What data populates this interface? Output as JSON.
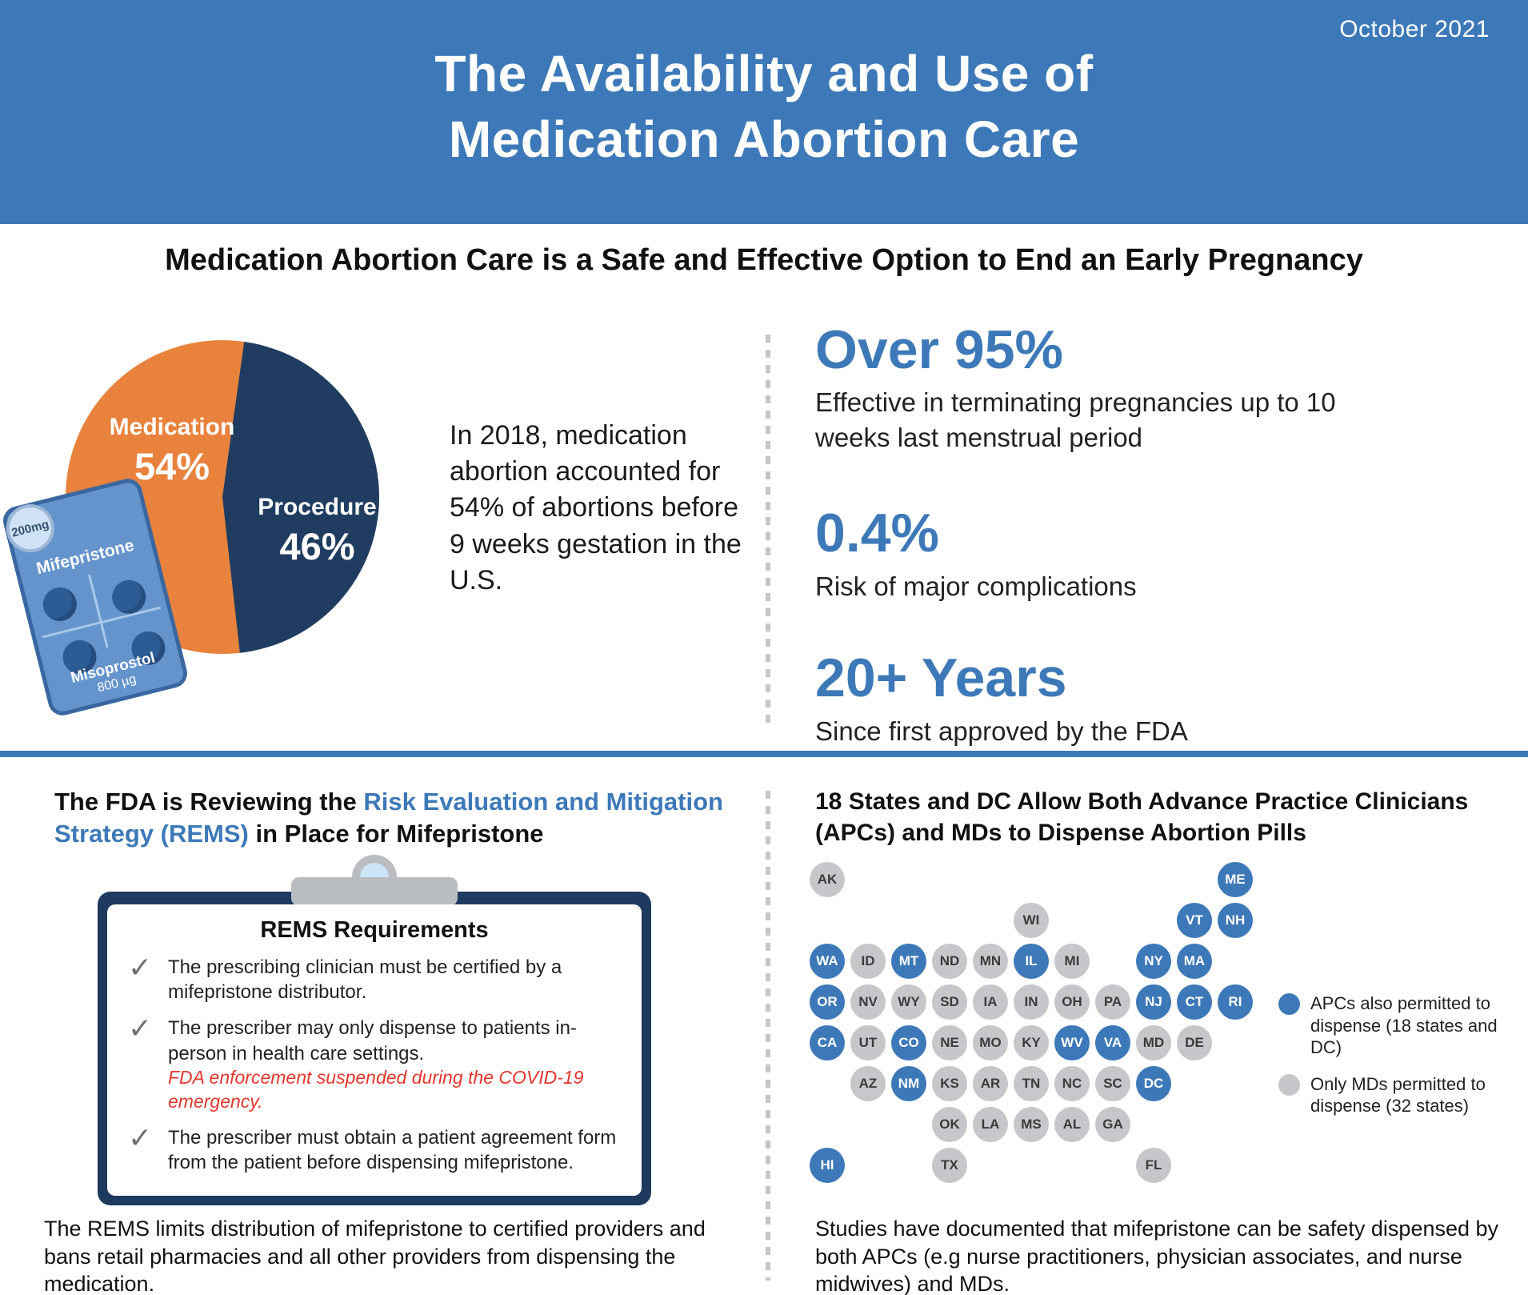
{
  "header": {
    "date": "October 2021",
    "title_line1": "The Availability and Use of",
    "title_line2": "Medication Abortion Care"
  },
  "section_safe": {
    "heading": "Medication Abortion Care is a Safe and Effective Option to End an Early Pregnancy",
    "caption": "In 2018, medication abortion accounted for 54% of abortions before 9 weeks gestation in the U.S.",
    "stats": [
      {
        "value": "Over 95%",
        "desc": "Effective in terminating pregnancies up to 10 weeks last menstrual period"
      },
      {
        "value": "0.4%",
        "desc": "Risk of major complications"
      },
      {
        "value": "20+ Years",
        "desc": "Since first approved by the FDA"
      }
    ]
  },
  "chart_data": {
    "type": "pie",
    "title": "Share of abortions before 9 weeks gestation in the U.S., 2018",
    "slices": [
      {
        "label": "Medication",
        "value": 54,
        "display": "54%",
        "color": "#E8823C"
      },
      {
        "label": "Procedure",
        "value": 46,
        "display": "46%",
        "color": "#203D61"
      }
    ],
    "legend_position": "on-slice"
  },
  "pill_pack": {
    "dose_badge": "200mg",
    "drug1": "Mifepristone",
    "drug2": "Misoprostol",
    "drug2_dose": "800 µg"
  },
  "rems": {
    "heading": {
      "part1": "The FDA is Reviewing the ",
      "part2_blue": "Risk Evaluation and Mitigation Strategy (REMS)",
      "part3": " in Place for Mifepristone"
    },
    "card_title": "REMS Requirements",
    "items": [
      {
        "text": "The prescribing clinician must be certified by a mifepristone distributor."
      },
      {
        "text": "The prescriber may only dispense to patients in-person in health care settings.",
        "note": "FDA enforcement suspended during the COVID-19 emergency."
      },
      {
        "text": "The prescriber must obtain a patient agreement form from the patient before dispensing mifepristone."
      }
    ],
    "footer": "The REMS limits distribution of mifepristone to certified providers and bans retail pharmacies and all other providers from dispensing the medication."
  },
  "map_section": {
    "heading": "18 States and DC Allow Both Advance Practice Clinicians (APCs) and MDs to Dispense Abortion Pills",
    "legend": [
      {
        "label": "APCs also permitted to dispense (18 states and DC)",
        "color": "#3d79b8"
      },
      {
        "label": "Only MDs permitted to dispense (32 states)",
        "color": "#c5c7ca"
      }
    ],
    "states": [
      {
        "abbr": "AK",
        "row": 0,
        "col": 0,
        "apc": false
      },
      {
        "abbr": "ME",
        "row": 0,
        "col": 10,
        "apc": true
      },
      {
        "abbr": "WI",
        "row": 1,
        "col": 5,
        "apc": false
      },
      {
        "abbr": "VT",
        "row": 1,
        "col": 9,
        "apc": true
      },
      {
        "abbr": "NH",
        "row": 1,
        "col": 10,
        "apc": true
      },
      {
        "abbr": "WA",
        "row": 2,
        "col": 0,
        "apc": true
      },
      {
        "abbr": "ID",
        "row": 2,
        "col": 1,
        "apc": false
      },
      {
        "abbr": "MT",
        "row": 2,
        "col": 2,
        "apc": true
      },
      {
        "abbr": "ND",
        "row": 2,
        "col": 3,
        "apc": false
      },
      {
        "abbr": "MN",
        "row": 2,
        "col": 4,
        "apc": false
      },
      {
        "abbr": "IL",
        "row": 2,
        "col": 5,
        "apc": true
      },
      {
        "abbr": "MI",
        "row": 2,
        "col": 6,
        "apc": false
      },
      {
        "abbr": "NY",
        "row": 2,
        "col": 8,
        "apc": true
      },
      {
        "abbr": "MA",
        "row": 2,
        "col": 9,
        "apc": true
      },
      {
        "abbr": "OR",
        "row": 3,
        "col": 0,
        "apc": true
      },
      {
        "abbr": "NV",
        "row": 3,
        "col": 1,
        "apc": false
      },
      {
        "abbr": "WY",
        "row": 3,
        "col": 2,
        "apc": false
      },
      {
        "abbr": "SD",
        "row": 3,
        "col": 3,
        "apc": false
      },
      {
        "abbr": "IA",
        "row": 3,
        "col": 4,
        "apc": false
      },
      {
        "abbr": "IN",
        "row": 3,
        "col": 5,
        "apc": false
      },
      {
        "abbr": "OH",
        "row": 3,
        "col": 6,
        "apc": false
      },
      {
        "abbr": "PA",
        "row": 3,
        "col": 7,
        "apc": false
      },
      {
        "abbr": "NJ",
        "row": 3,
        "col": 8,
        "apc": true
      },
      {
        "abbr": "CT",
        "row": 3,
        "col": 9,
        "apc": true
      },
      {
        "abbr": "RI",
        "row": 3,
        "col": 10,
        "apc": true
      },
      {
        "abbr": "CA",
        "row": 4,
        "col": 0,
        "apc": true
      },
      {
        "abbr": "UT",
        "row": 4,
        "col": 1,
        "apc": false
      },
      {
        "abbr": "CO",
        "row": 4,
        "col": 2,
        "apc": true
      },
      {
        "abbr": "NE",
        "row": 4,
        "col": 3,
        "apc": false
      },
      {
        "abbr": "MO",
        "row": 4,
        "col": 4,
        "apc": false
      },
      {
        "abbr": "KY",
        "row": 4,
        "col": 5,
        "apc": false
      },
      {
        "abbr": "WV",
        "row": 4,
        "col": 6,
        "apc": true
      },
      {
        "abbr": "VA",
        "row": 4,
        "col": 7,
        "apc": true
      },
      {
        "abbr": "MD",
        "row": 4,
        "col": 8,
        "apc": false
      },
      {
        "abbr": "DE",
        "row": 4,
        "col": 9,
        "apc": false
      },
      {
        "abbr": "AZ",
        "row": 5,
        "col": 1,
        "apc": false
      },
      {
        "abbr": "NM",
        "row": 5,
        "col": 2,
        "apc": true
      },
      {
        "abbr": "KS",
        "row": 5,
        "col": 3,
        "apc": false
      },
      {
        "abbr": "AR",
        "row": 5,
        "col": 4,
        "apc": false
      },
      {
        "abbr": "TN",
        "row": 5,
        "col": 5,
        "apc": false
      },
      {
        "abbr": "NC",
        "row": 5,
        "col": 6,
        "apc": false
      },
      {
        "abbr": "SC",
        "row": 5,
        "col": 7,
        "apc": false
      },
      {
        "abbr": "DC",
        "row": 5,
        "col": 8,
        "apc": true
      },
      {
        "abbr": "OK",
        "row": 6,
        "col": 3,
        "apc": false
      },
      {
        "abbr": "LA",
        "row": 6,
        "col": 4,
        "apc": false
      },
      {
        "abbr": "MS",
        "row": 6,
        "col": 5,
        "apc": false
      },
      {
        "abbr": "AL",
        "row": 6,
        "col": 6,
        "apc": false
      },
      {
        "abbr": "GA",
        "row": 6,
        "col": 7,
        "apc": false
      },
      {
        "abbr": "HI",
        "row": 7,
        "col": 0,
        "apc": true
      },
      {
        "abbr": "TX",
        "row": 7,
        "col": 3,
        "apc": false
      },
      {
        "abbr": "FL",
        "row": 7,
        "col": 8,
        "apc": false
      }
    ],
    "footer": "Studies have documented that mifepristone can be safety dispensed by both APCs (e.g nurse practitioners, physician associates, and nurse midwives) and MDs."
  }
}
